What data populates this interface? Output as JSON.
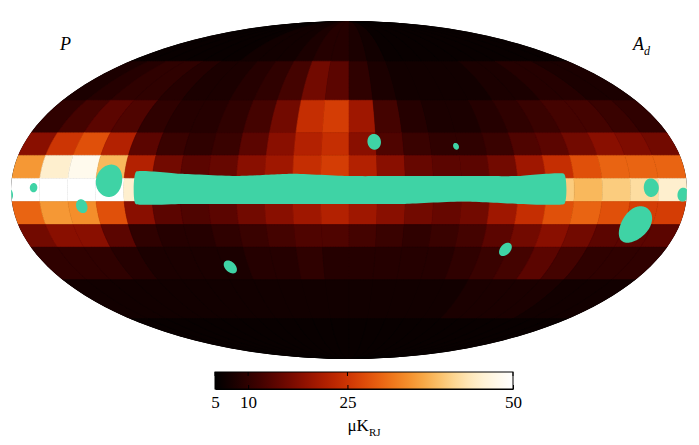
{
  "chart_data": {
    "type": "map",
    "labels": {
      "left": {
        "text": "P"
      },
      "right": {
        "text": "A",
        "subscript": "d"
      }
    },
    "cells": {
      "lon_edges": [
        180,
        165,
        150,
        135,
        120,
        105,
        90,
        75,
        60,
        45,
        30,
        15,
        0,
        -15,
        -30,
        -45,
        -60,
        -75,
        -90,
        -105,
        -120,
        -135,
        -150,
        -165,
        -180
      ],
      "lat_edges": [
        90,
        60,
        40,
        25,
        15,
        5,
        -5,
        -15,
        -25,
        -40,
        -60,
        -90
      ],
      "values": [
        [
          6,
          6,
          6,
          6,
          6,
          6,
          7,
          7,
          7,
          8,
          9,
          9,
          8,
          7,
          6,
          6,
          6,
          6,
          6,
          6,
          6,
          6,
          6,
          6
        ],
        [
          8,
          9,
          10,
          10,
          9,
          8,
          8,
          9,
          10,
          12,
          16,
          14,
          10,
          8,
          7,
          7,
          7,
          7,
          8,
          8,
          9,
          9,
          8,
          8
        ],
        [
          10,
          12,
          14,
          13,
          10,
          9,
          9,
          10,
          12,
          16,
          24,
          26,
          20,
          12,
          9,
          8,
          8,
          9,
          10,
          11,
          12,
          12,
          11,
          10
        ],
        [
          18,
          25,
          28,
          22,
          14,
          11,
          10,
          11,
          14,
          18,
          22,
          24,
          18,
          13,
          11,
          10,
          10,
          11,
          13,
          14,
          16,
          18,
          17,
          16
        ],
        [
          35,
          45,
          48,
          38,
          22,
          16,
          14,
          15,
          18,
          20,
          24,
          26,
          22,
          18,
          15,
          14,
          14,
          16,
          20,
          24,
          28,
          30,
          30,
          30
        ],
        [
          50,
          55,
          58,
          52,
          45,
          42,
          45,
          50,
          55,
          58,
          60,
          60,
          58,
          55,
          52,
          50,
          45,
          42,
          40,
          40,
          38,
          40,
          42,
          45
        ],
        [
          30,
          35,
          34,
          28,
          18,
          14,
          13,
          14,
          16,
          18,
          20,
          22,
          20,
          18,
          16,
          15,
          16,
          20,
          24,
          28,
          30,
          28,
          26,
          26
        ],
        [
          16,
          18,
          18,
          14,
          10,
          9,
          9,
          10,
          11,
          12,
          13,
          13,
          12,
          11,
          10,
          11,
          12,
          14,
          16,
          18,
          16,
          14,
          14,
          14
        ],
        [
          10,
          10,
          10,
          9,
          8,
          8,
          8,
          8,
          9,
          9,
          10,
          9,
          9,
          9,
          9,
          9,
          10,
          11,
          12,
          14,
          12,
          10,
          10,
          10
        ],
        [
          7,
          7,
          7,
          7,
          7,
          7,
          7,
          7,
          7,
          7,
          7,
          7,
          7,
          7,
          7,
          7,
          7,
          8,
          8,
          8,
          8,
          7,
          7,
          7
        ],
        [
          6,
          6,
          6,
          6,
          6,
          6,
          6,
          6,
          6,
          6,
          6,
          6,
          6,
          6,
          6,
          6,
          6,
          6,
          6,
          6,
          6,
          6,
          6,
          6
        ]
      ]
    },
    "mask": {
      "band": {
        "lon": [
          114,
          90,
          60,
          30,
          0,
          -30,
          -60,
          -90,
          -115
        ],
        "lat_top": [
          8,
          7,
          6,
          7,
          6,
          6,
          6,
          6,
          7
        ],
        "lat_bottom": [
          -6,
          -6,
          -6,
          -6,
          -6,
          -6,
          -5,
          -6,
          -6
        ]
      },
      "spots": [
        {
          "lon": 128,
          "lat": 4,
          "radius": 7
        },
        {
          "lon": 143,
          "lat": -7,
          "radius": 3
        },
        {
          "lon": 168,
          "lat": 1,
          "radius": 2
        },
        {
          "lon": 71,
          "lat": -34,
          "radius": 3
        },
        {
          "lon": -14,
          "lat": 21,
          "radius": 3.5
        },
        {
          "lon": -59,
          "lat": 19,
          "radius": 1.5
        },
        {
          "lon": -89,
          "lat": -26,
          "radius": 3
        },
        {
          "lon": -156,
          "lat": -15,
          "radius": 8
        },
        {
          "lon": -161,
          "lat": 1,
          "radius": 4
        },
        {
          "lon": -178,
          "lat": -2,
          "radius": 3
        }
      ]
    },
    "colorbar": {
      "range": [
        5,
        50
      ],
      "ticks": [
        5,
        10,
        25,
        50
      ],
      "label": {
        "text": "μK",
        "subscript": "RJ"
      }
    }
  }
}
